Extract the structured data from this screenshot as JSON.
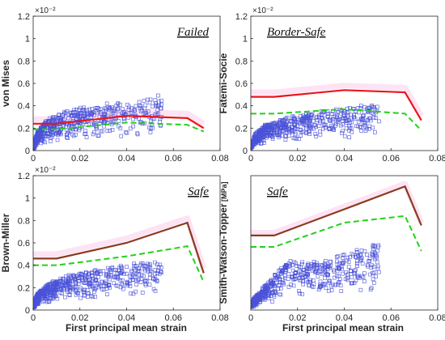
{
  "figure": {
    "xlabel": "First principal mean strain",
    "exponent": "×10⁻²"
  },
  "chart_data": [
    {
      "type": "scatter",
      "id": "vm",
      "ylabel": "von Mises",
      "ylabel_unit": "",
      "annotation": "Failed",
      "annotation_pos": "top-right",
      "show_exponent": true,
      "xlim": [
        0,
        0.08
      ],
      "ylim": [
        0,
        1.2
      ],
      "xticks": [
        0,
        0.02,
        0.04,
        0.06,
        0.08
      ],
      "xtick_labels": [
        "0",
        "0.02",
        "0.04",
        "0.06",
        "0.08"
      ],
      "yticks": [
        0,
        0.2,
        0.4,
        0.6,
        0.8,
        1.0,
        1.2
      ],
      "ytick_labels": [
        "0",
        "0.2",
        "0.4",
        "0.6",
        "0.8",
        "1",
        "1.2"
      ],
      "solid_color": "#e8161d",
      "solid": {
        "x": [
          0,
          0.01,
          0.04,
          0.066,
          0.073
        ],
        "y": [
          0.24,
          0.24,
          0.31,
          0.29,
          0.2
        ]
      },
      "dashed": {
        "x": [
          0,
          0.01,
          0.04,
          0.066,
          0.073
        ],
        "y": [
          0.19,
          0.19,
          0.25,
          0.23,
          0.17
        ]
      },
      "scatter_max": {
        "x": [
          0,
          0.002,
          0.006,
          0.012,
          0.02,
          0.03,
          0.04,
          0.05,
          0.055
        ],
        "y": [
          0.06,
          0.2,
          0.3,
          0.37,
          0.42,
          0.46,
          0.49,
          0.52,
          0.54
        ]
      },
      "scatter_density": 0.85,
      "scatter_count": 620
    },
    {
      "type": "scatter",
      "id": "fs",
      "ylabel": "Fatemi-Socie",
      "ylabel_unit": "",
      "annotation": "Border-Safe",
      "annotation_pos": "top-left",
      "show_exponent": true,
      "xlim": [
        0,
        0.08
      ],
      "ylim": [
        0,
        1.2
      ],
      "xticks": [
        0,
        0.02,
        0.04,
        0.06,
        0.08
      ],
      "xtick_labels": [
        "0",
        "0.02",
        "0.04",
        "0.06",
        "0.08"
      ],
      "yticks": [
        0,
        0.2,
        0.4,
        0.6,
        0.8,
        1.0,
        1.2
      ],
      "ytick_labels": [
        "0",
        "0.2",
        "0.4",
        "0.6",
        "0.8",
        "1",
        "1.2"
      ],
      "solid_color": "#e8161d",
      "solid": {
        "x": [
          0,
          0.01,
          0.04,
          0.066,
          0.073
        ],
        "y": [
          0.48,
          0.48,
          0.54,
          0.52,
          0.27
        ]
      },
      "dashed": {
        "x": [
          0,
          0.01,
          0.04,
          0.066,
          0.073
        ],
        "y": [
          0.33,
          0.33,
          0.37,
          0.33,
          0.18
        ]
      },
      "scatter_max": {
        "x": [
          0,
          0.002,
          0.006,
          0.012,
          0.02,
          0.03,
          0.04,
          0.05,
          0.055
        ],
        "y": [
          0.06,
          0.17,
          0.25,
          0.3,
          0.35,
          0.39,
          0.42,
          0.45,
          0.47
        ]
      },
      "scatter_density": 0.85,
      "scatter_count": 620
    },
    {
      "type": "scatter",
      "id": "bm",
      "ylabel": "Brown-Miller",
      "ylabel_unit": "",
      "annotation": "Safe",
      "annotation_pos": "top-right",
      "show_exponent": true,
      "xlim": [
        0,
        0.08
      ],
      "ylim": [
        0,
        1.2
      ],
      "xticks": [
        0,
        0.02,
        0.04,
        0.06,
        0.08
      ],
      "xtick_labels": [
        "0",
        "0.02",
        "0.04",
        "0.06",
        "0.08"
      ],
      "yticks": [
        0,
        0.2,
        0.4,
        0.6,
        0.8,
        1.0,
        1.2
      ],
      "ytick_labels": [
        "0",
        "0.2",
        "0.4",
        "0.6",
        "0.8",
        "1",
        "1.2"
      ],
      "solid_color": "#8b3a1e",
      "solid": {
        "x": [
          0,
          0.01,
          0.04,
          0.066,
          0.073
        ],
        "y": [
          0.46,
          0.46,
          0.6,
          0.78,
          0.33
        ]
      },
      "dashed": {
        "x": [
          0,
          0.01,
          0.04,
          0.066,
          0.073
        ],
        "y": [
          0.4,
          0.4,
          0.48,
          0.57,
          0.25
        ]
      },
      "scatter_max": {
        "x": [
          0,
          0.002,
          0.006,
          0.012,
          0.02,
          0.03,
          0.04,
          0.05,
          0.055
        ],
        "y": [
          0.07,
          0.17,
          0.26,
          0.32,
          0.37,
          0.41,
          0.45,
          0.48,
          0.5
        ]
      },
      "scatter_density": 0.85,
      "scatter_count": 620
    },
    {
      "type": "scatter",
      "id": "swt",
      "ylabel": "Smith-Watson-Topper",
      "ylabel_unit": "[MPa]",
      "annotation": "Safe",
      "annotation_pos": "top-left",
      "show_exponent": false,
      "xlim": [
        0,
        0.08
      ],
      "ylim": [
        0,
        2.0
      ],
      "xticks": [
        0,
        0.02,
        0.04,
        0.06,
        0.08
      ],
      "xtick_labels": [
        "0",
        "0.02",
        "0.04",
        "0.06",
        "0.08"
      ],
      "yticks": [],
      "ytick_labels": [],
      "solid_color": "#8b3a1e",
      "solid": {
        "x": [
          0,
          0.01,
          0.04,
          0.066,
          0.073
        ],
        "y": [
          1.11,
          1.11,
          1.5,
          1.84,
          1.26
        ]
      },
      "dashed": {
        "x": [
          0,
          0.01,
          0.04,
          0.066,
          0.073
        ],
        "y": [
          0.94,
          0.94,
          1.3,
          1.4,
          0.88
        ]
      },
      "scatter_max": {
        "x": [
          0,
          0.004,
          0.008,
          0.012,
          0.016,
          0.02,
          0.03,
          0.04,
          0.05,
          0.055
        ],
        "y": [
          0.15,
          0.35,
          0.55,
          0.75,
          0.92,
          0.9,
          0.9,
          1.05,
          1.2,
          1.25
        ]
      },
      "scatter_density": 0.75,
      "scatter_count": 560
    }
  ],
  "colors": {
    "scatter": "#4a52d8",
    "dashed": "#22d11a",
    "ghost": "#fcdcf0"
  }
}
